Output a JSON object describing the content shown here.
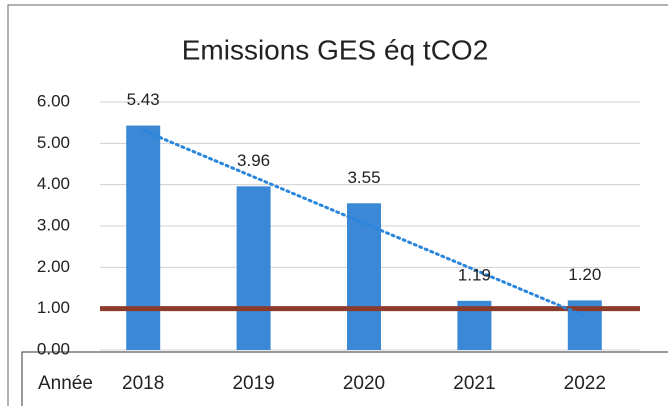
{
  "chart_data": {
    "type": "bar",
    "title": "Emissions GES éq tCO2",
    "x_label": "Année",
    "categories": [
      "2018",
      "2019",
      "2020",
      "2021",
      "2022"
    ],
    "values": [
      5.43,
      3.96,
      3.55,
      1.19,
      1.2
    ],
    "value_labels": [
      "5.43",
      "3.96",
      "3.55",
      "1.19",
      "1.20"
    ],
    "color": "#3b88d6",
    "ylim": [
      0,
      6
    ],
    "yticks": [
      {
        "value": 0,
        "label": "0.00"
      },
      {
        "value": 1,
        "label": "1.00"
      },
      {
        "value": 2,
        "label": "2.00"
      },
      {
        "value": 3,
        "label": "3.00"
      },
      {
        "value": 4,
        "label": "4.00"
      },
      {
        "value": 5,
        "label": "5.00"
      },
      {
        "value": 6,
        "label": "6.00"
      }
    ],
    "grid": true,
    "trendline": {
      "type": "linear",
      "color": "#2a86dc"
    },
    "reference_line": {
      "value": 1.0,
      "color": "#8a3b2c"
    }
  }
}
